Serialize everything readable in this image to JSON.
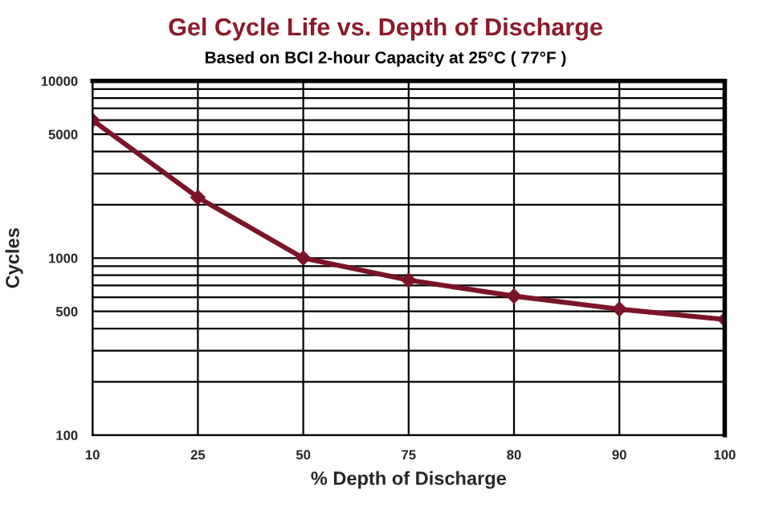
{
  "chart_data": {
    "type": "line",
    "title": "Gel Cycle Life vs. Depth of Discharge",
    "subtitle": "Based on BCI 2-hour Capacity at 25°C ( 77°F )",
    "xlabel": "% Depth of Discharge",
    "ylabel": "Cycles",
    "categories": [
      "10",
      "25",
      "50",
      "75",
      "80",
      "90",
      "100"
    ],
    "series": [
      {
        "color": "#7b1428",
        "values": [
          6000,
          2200,
          1000,
          750,
          610,
          515,
          450
        ]
      }
    ],
    "log": "y",
    "ylim": [
      100,
      10000
    ],
    "yticks": [
      100,
      {
        "value": 200,
        "label": null
      },
      {
        "value": 300,
        "label": null
      },
      {
        "value": 400,
        "label": null
      },
      500,
      {
        "value": 600,
        "label": null
      },
      {
        "value": 700,
        "label": null
      },
      {
        "value": 800,
        "label": null
      },
      {
        "value": 900,
        "label": null
      },
      1000,
      {
        "value": 2000,
        "label": null
      },
      {
        "value": 3000,
        "label": null
      },
      {
        "value": 4000,
        "label": null
      },
      5000,
      {
        "value": 6000,
        "label": null
      },
      {
        "value": 7000,
        "label": null
      },
      {
        "value": 8000,
        "label": null
      },
      {
        "value": 9000,
        "label": null
      },
      10000
    ],
    "grid": true,
    "marker": "diamond",
    "line_style": "solid"
  }
}
